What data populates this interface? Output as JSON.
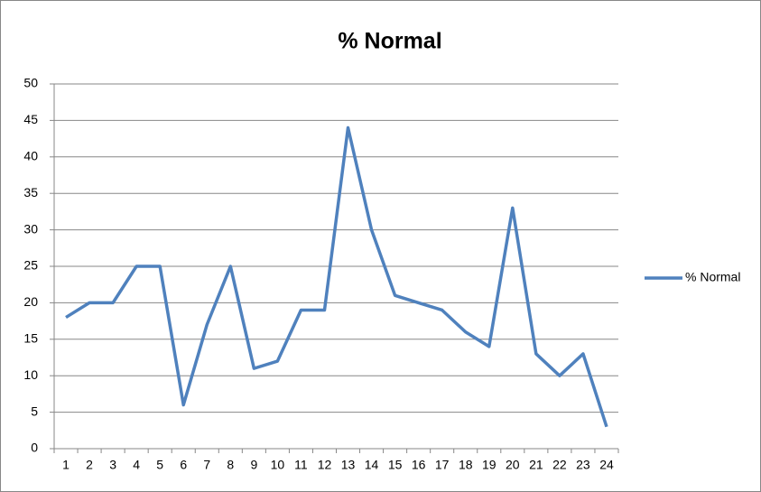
{
  "chart_data": {
    "type": "line",
    "title": "% Normal",
    "categories": [
      "1",
      "2",
      "3",
      "4",
      "5",
      "6",
      "7",
      "8",
      "9",
      "10",
      "11",
      "12",
      "13",
      "14",
      "15",
      "16",
      "17",
      "18",
      "19",
      "20",
      "21",
      "22",
      "23",
      "24"
    ],
    "series": [
      {
        "name": "% Normal",
        "color": "#4f81bd",
        "values": [
          18,
          20,
          20,
          25,
          25,
          6,
          17,
          25,
          11,
          12,
          19,
          19,
          44,
          30,
          21,
          20,
          19,
          16,
          14,
          33,
          13,
          10,
          13,
          3
        ]
      }
    ],
    "ylim": [
      0,
      50
    ],
    "yticks": [
      0,
      5,
      10,
      15,
      20,
      25,
      30,
      35,
      40,
      45,
      50
    ],
    "grid": true,
    "legend": "right"
  }
}
